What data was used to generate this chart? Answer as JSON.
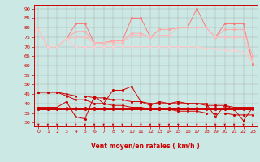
{
  "xlabel": "Vent moyen/en rafales ( km/h )",
  "bg_color": "#cce8e4",
  "xlim": [
    -0.5,
    23.5
  ],
  "ylim": [
    28,
    92
  ],
  "yticks": [
    30,
    35,
    40,
    45,
    50,
    55,
    60,
    65,
    70,
    75,
    80,
    85,
    90
  ],
  "xticks": [
    0,
    1,
    2,
    3,
    4,
    5,
    6,
    7,
    8,
    9,
    10,
    11,
    12,
    13,
    14,
    15,
    16,
    17,
    18,
    19,
    20,
    21,
    22,
    23
  ],
  "series": {
    "rafales_high": [
      79,
      70,
      70,
      74,
      82,
      82,
      72,
      72,
      73,
      73,
      85,
      85,
      75,
      79,
      79,
      80,
      80,
      90,
      80,
      75,
      82,
      82,
      82,
      61
    ],
    "rafales_mid1": [
      79,
      70,
      70,
      74,
      78,
      78,
      72,
      72,
      73,
      73,
      77,
      77,
      75,
      79,
      79,
      80,
      80,
      80,
      80,
      75,
      79,
      79,
      79,
      65
    ],
    "rafales_mid2": [
      79,
      70,
      70,
      74,
      75,
      75,
      72,
      72,
      72,
      72,
      76,
      76,
      75,
      76,
      76,
      80,
      80,
      80,
      80,
      75,
      75,
      75,
      75,
      62
    ],
    "rafales_low": [
      79,
      70,
      70,
      74,
      70,
      70,
      70,
      70,
      70,
      70,
      70,
      70,
      70,
      70,
      70,
      70,
      70,
      70,
      69,
      69,
      68,
      68,
      67,
      62
    ],
    "vent_jagged": [
      38,
      38,
      38,
      41,
      33,
      32,
      44,
      40,
      47,
      47,
      49,
      41,
      39,
      41,
      40,
      41,
      40,
      40,
      40,
      33,
      39,
      37,
      31,
      38
    ],
    "vent_smooth1": [
      46,
      46,
      46,
      45,
      44,
      44,
      43,
      43,
      42,
      42,
      41,
      41,
      40,
      40,
      40,
      40,
      40,
      40,
      39,
      39,
      39,
      38,
      38,
      38
    ],
    "vent_flat1": [
      38,
      38,
      38,
      38,
      38,
      38,
      38,
      38,
      38,
      38,
      38,
      38,
      38,
      38,
      38,
      38,
      38,
      38,
      38,
      38,
      38,
      38,
      38,
      38
    ],
    "vent_flat2": [
      37,
      37,
      37,
      37,
      37,
      37,
      37,
      37,
      37,
      37,
      37,
      37,
      37,
      37,
      37,
      37,
      37,
      37,
      37,
      37,
      37,
      37,
      37,
      37
    ],
    "vent_trend": [
      46,
      46,
      46,
      44,
      42,
      42,
      40,
      40,
      39,
      39,
      38,
      38,
      37,
      37,
      37,
      36,
      36,
      36,
      35,
      35,
      35,
      34,
      34,
      34
    ]
  },
  "rafales_colors": [
    "#ff7777",
    "#ffaaaa",
    "#ffbbbb",
    "#ffcccc"
  ],
  "vent_colors": [
    "#cc0000",
    "#cc0000",
    "#cc0000",
    "#cc0000",
    "#cc0000"
  ]
}
